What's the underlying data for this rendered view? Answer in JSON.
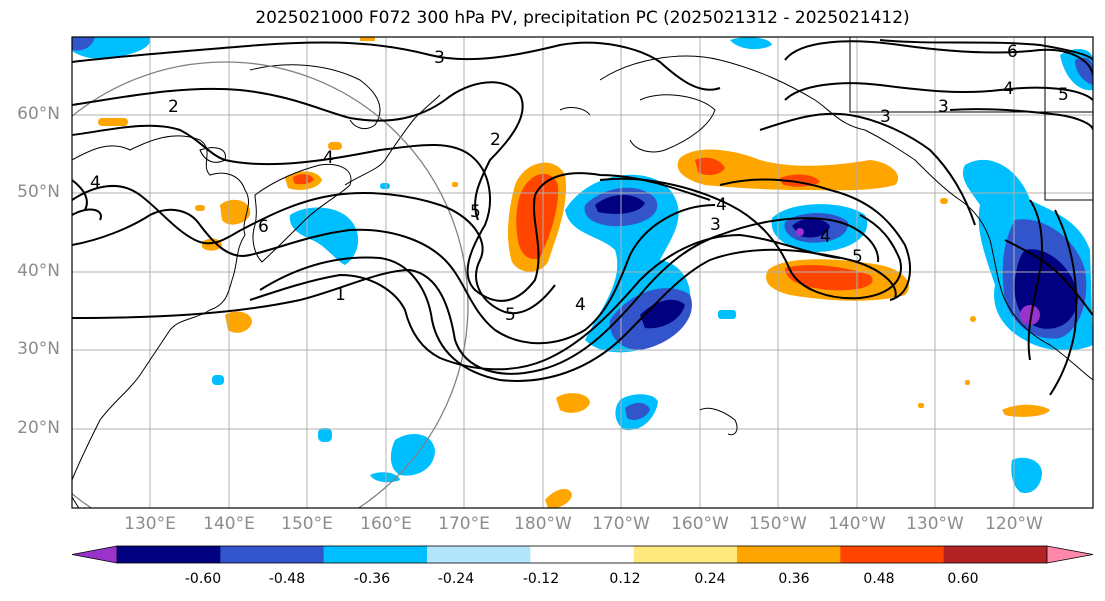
{
  "title": "2025021000 F072 300 hPa PV, precipitation PC (2025021312 - 2025021412)",
  "map": {
    "lat_labels": [
      "60°N",
      "50°N",
      "40°N",
      "30°N",
      "20°N"
    ],
    "lon_labels": [
      "130°E",
      "140°E",
      "150°E",
      "160°E",
      "170°E",
      "180°W",
      "170°W",
      "160°W",
      "150°W",
      "140°W",
      "130°W",
      "120°W"
    ],
    "contour_labels": [
      "3",
      "2",
      "4",
      "5",
      "6",
      "1",
      "2",
      "3",
      "4",
      "5",
      "4",
      "3",
      "5",
      "4",
      "3",
      "6",
      "4",
      "5",
      "4"
    ],
    "colors": {
      "land_outline": "#000000",
      "grid": "#b0b0b0",
      "circle": "#808080"
    }
  },
  "colorbar": {
    "tick_labels": [
      "-0.60",
      "-0.48",
      "-0.36",
      "-0.24",
      "-0.12",
      "0.12",
      "0.24",
      "0.36",
      "0.48",
      "0.60"
    ],
    "colors": [
      "#9933cc",
      "#000080",
      "#3355cc",
      "#00bfff",
      "#b3e5fc",
      "#ffffff",
      "#ffea80",
      "#ffa500",
      "#ff4500",
      "#b22222",
      "#ff88aa"
    ]
  }
}
